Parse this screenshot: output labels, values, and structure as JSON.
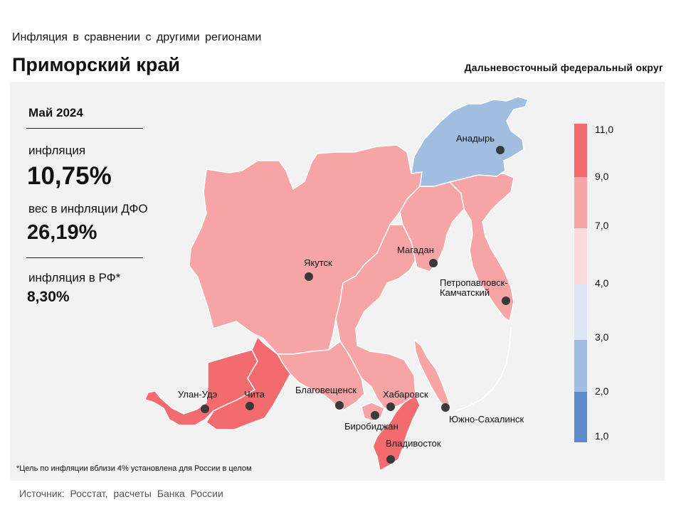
{
  "header": {
    "supertitle": "Инфляция в сравнении с другими регионами",
    "title": "Приморский край",
    "district": "Дальневосточный федеральный округ"
  },
  "stats": {
    "period": "Май 2024",
    "inflation_label": "инфляция",
    "inflation_value": "10,75%",
    "weight_label": "вес в инфляции ДФО",
    "weight_value": "26,19%",
    "rf_label": "инфляция в РФ*",
    "rf_value": "8,30%"
  },
  "legend": {
    "ticks": [
      "11,0",
      "9,0",
      "7,0",
      "4,0",
      "3,0",
      "2,0",
      "1,0"
    ],
    "colors": [
      "#f26b6e",
      "#f7a4a6",
      "#fbdbdd",
      "#dde6f5",
      "#a1bde0",
      "#5d8ac9"
    ]
  },
  "cities": {
    "anadyr": "Анадырь",
    "yakutsk": "Якутск",
    "magadan": "Магадан",
    "petropavlovsk_1": "Петропавловск-",
    "petropavlovsk_2": "Камчатский",
    "ulan_ude": "Улан-Удэ",
    "chita": "Чита",
    "blagoveshchensk": "Благовещенск",
    "khabarovsk": "Хабаровск",
    "birobidzhan": "Биробиджан",
    "yuzhno_sakhalinsk": "Южно-Сахалинск",
    "vladivostok": "Владивосток"
  },
  "map_colors": {
    "region_7_9": "#f7a4a6",
    "region_9_11": "#f26b6e",
    "region_2_3": "#a1bde0"
  },
  "footnote": "*Цель по инфляции вблизи 4% установлена для России в целом",
  "source": "Источник: Росстат, расчеты Банка России"
}
